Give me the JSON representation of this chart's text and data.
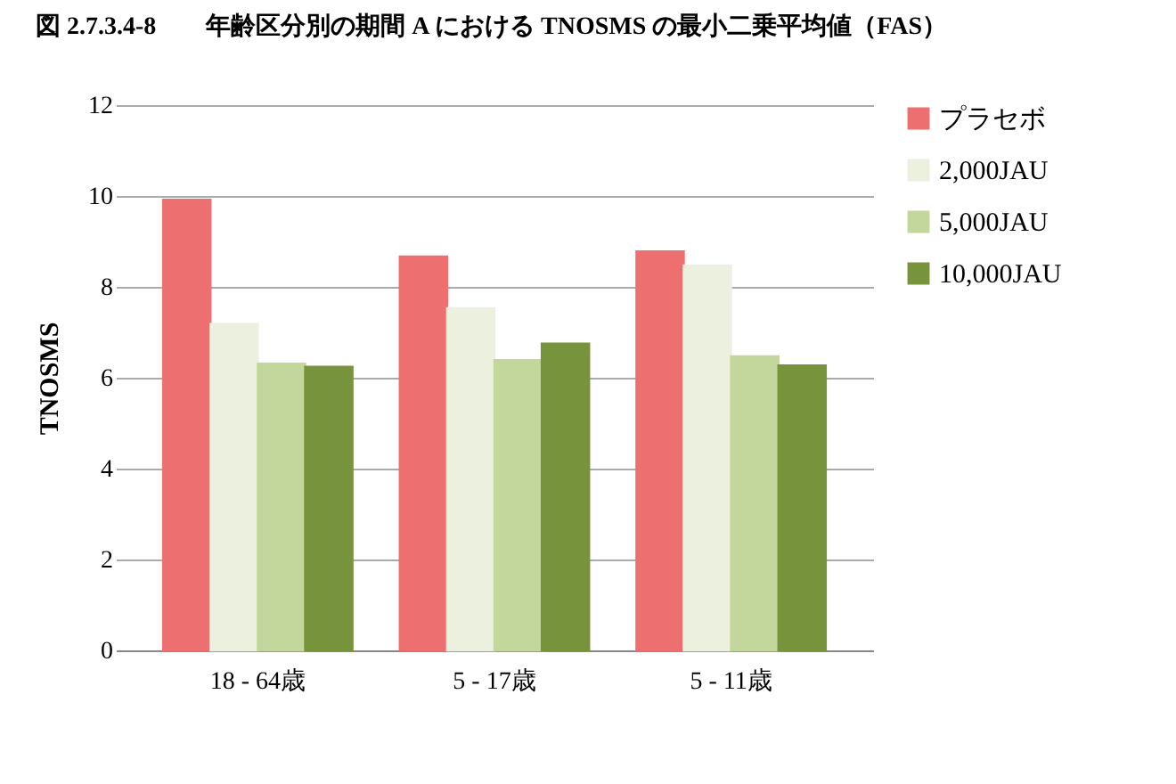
{
  "chart_data": {
    "type": "bar",
    "title": "図 2.7.3.4-8　　年齢区分別の期間 A における TNOSMS の最小二乗平均値（FAS）",
    "ylabel": "TNOSMS",
    "categories": [
      "18 - 64歳",
      "5 - 17歳",
      "5 - 11歳"
    ],
    "series": [
      {
        "name": "プラセボ",
        "color": "#ee6f6f",
        "values": [
          9.92,
          8.67,
          8.78
        ]
      },
      {
        "name": "2,000JAU",
        "color": "#ebf1de",
        "values": [
          7.18,
          7.53,
          8.47
        ]
      },
      {
        "name": "5,000JAU",
        "color": "#c3d69b",
        "values": [
          6.31,
          6.39,
          6.47
        ]
      },
      {
        "name": "10,000JAU",
        "color": "#77933c",
        "values": [
          6.24,
          6.75,
          6.27
        ]
      }
    ],
    "ylim": [
      0,
      12
    ],
    "yticks": [
      0,
      2,
      4,
      6,
      8,
      10,
      12
    ],
    "grid": "y",
    "legend": "right"
  }
}
